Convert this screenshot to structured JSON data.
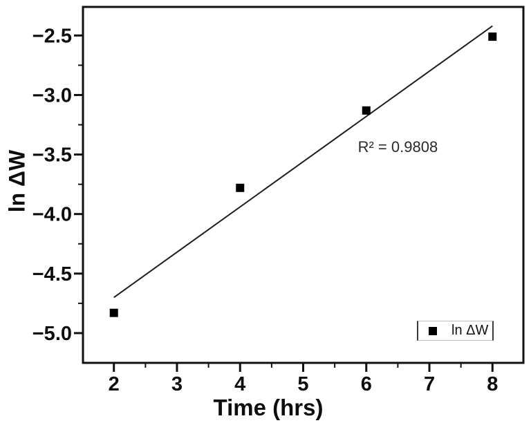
{
  "figure": {
    "background_color": "#ffffff",
    "ink_color": "#111111"
  },
  "chart_data": {
    "type": "scatter",
    "title": "",
    "xlabel": "Time (hrs)",
    "ylabel": "ln ΔW",
    "series": [
      {
        "name": "ln ΔW",
        "marker": "square",
        "color": "#000000",
        "points": [
          {
            "x": 2,
            "y": -4.83
          },
          {
            "x": 4,
            "y": -3.78
          },
          {
            "x": 6,
            "y": -3.13
          },
          {
            "x": 8,
            "y": -2.51
          }
        ]
      }
    ],
    "fit_line": {
      "color": "#1c1c1c",
      "x": [
        2.0,
        8.0
      ],
      "y": [
        -4.7,
        -2.42
      ],
      "slope": 0.3805,
      "intercept": -5.465
    },
    "annotation": {
      "text": "R² = 0.9808",
      "x": 6.5,
      "y": -3.44
    },
    "axes": {
      "xlim": [
        1.51,
        8.49
      ],
      "ylim": [
        -5.25,
        -2.26
      ],
      "grid": false,
      "x_major_ticks": [
        {
          "value": 2,
          "label": "2"
        },
        {
          "value": 3,
          "label": "3"
        },
        {
          "value": 4,
          "label": "4"
        },
        {
          "value": 5,
          "label": "5"
        },
        {
          "value": 6,
          "label": "6"
        },
        {
          "value": 7,
          "label": "7"
        },
        {
          "value": 8,
          "label": "8"
        }
      ],
      "x_minor_ticks": [
        2.5,
        3.5,
        4.5,
        5.5,
        6.5,
        7.5
      ],
      "y_major_ticks": [
        {
          "value": -2.5,
          "label": "−2.5"
        },
        {
          "value": -3.0,
          "label": "−3.0"
        },
        {
          "value": -3.5,
          "label": "−3.5"
        },
        {
          "value": -4.0,
          "label": "−4.0"
        },
        {
          "value": -4.5,
          "label": "−4.5"
        },
        {
          "value": -5.0,
          "label": "−5.0"
        }
      ],
      "y_minor_ticks": [
        -2.75,
        -3.25,
        -3.75,
        -4.25,
        -4.75
      ]
    },
    "legend": {
      "label": "ln ΔW",
      "marker": "square",
      "marker_color": "#000000",
      "position": "bottom-right"
    }
  }
}
